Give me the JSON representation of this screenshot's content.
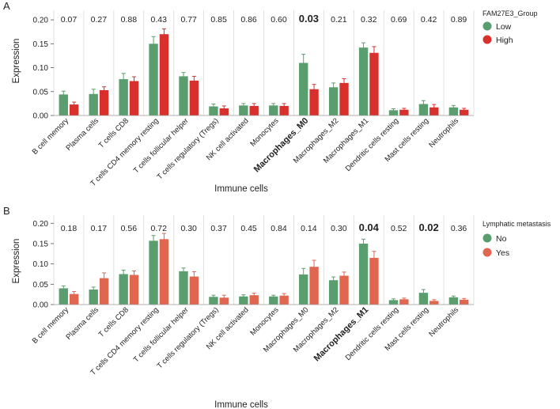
{
  "chart_data": [
    {
      "panel_label": "A",
      "type": "bar",
      "ylabel": "Expression",
      "xlabel": "Immune cells",
      "ylim": [
        0,
        0.22
      ],
      "yticks": [
        "0.00",
        "0.05",
        "0.10",
        "0.15",
        "0.20"
      ],
      "tick_values": [
        0,
        0.05,
        0.1,
        0.15,
        0.2
      ],
      "categories": [
        "B cell memory",
        "Plasma cells",
        "T cells CD8",
        "T cells CD4 memory resting",
        "T cells follicular helper",
        "T cells regulatory (Tregs)",
        "NK cell activated",
        "Monocytes",
        "Macrophages_M0",
        "Macrophages_M2",
        "Macrophages_M1",
        "Dendritic cells resting",
        "Mast cells resting",
        "Neutrophils"
      ],
      "highlight_category": "Macrophages_M0",
      "pvalues": [
        "0.07",
        "0.27",
        "0.88",
        "0.43",
        "0.77",
        "0.85",
        "0.86",
        "0.60",
        "0.03",
        "0.21",
        "0.32",
        "0.69",
        "0.42",
        "0.89"
      ],
      "significant_pvalue": "0.03",
      "legend_title": "FAM27E3_Group",
      "series": [
        {
          "name": "Low",
          "color": "#5a9e6f",
          "values": [
            0.044,
            0.045,
            0.076,
            0.15,
            0.082,
            0.019,
            0.021,
            0.021,
            0.11,
            0.059,
            0.142,
            0.011,
            0.024,
            0.017
          ],
          "errors": [
            0.007,
            0.01,
            0.012,
            0.015,
            0.008,
            0.005,
            0.004,
            0.004,
            0.018,
            0.009,
            0.01,
            0.003,
            0.007,
            0.004
          ]
        },
        {
          "name": "High",
          "color": "#d8312d",
          "values": [
            0.023,
            0.053,
            0.072,
            0.17,
            0.073,
            0.015,
            0.02,
            0.02,
            0.055,
            0.068,
            0.131,
            0.012,
            0.017,
            0.012
          ],
          "errors": [
            0.005,
            0.007,
            0.009,
            0.011,
            0.009,
            0.005,
            0.005,
            0.005,
            0.01,
            0.009,
            0.013,
            0.003,
            0.006,
            0.003
          ]
        }
      ]
    },
    {
      "panel_label": "B",
      "type": "bar",
      "ylabel": "Expression",
      "xlabel": "Immune cells",
      "ylim": [
        0,
        0.22
      ],
      "yticks": [
        "0.00",
        "0.05",
        "0.10",
        "0.15",
        "0.20"
      ],
      "tick_values": [
        0,
        0.05,
        0.1,
        0.15,
        0.2
      ],
      "categories": [
        "B cell memory",
        "Plasma cells",
        "T cells CD8",
        "T cells CD4 memory resting",
        "T cells follicular helper",
        "T cells regulatory (Tregs)",
        "NK cell activated",
        "Monocytes",
        "Macrophages_M0",
        "Macrophages_M2",
        "Macrophages_M1",
        "Dendritic cells resting",
        "Mast cells resting",
        "Neutrophils"
      ],
      "highlight_category": "Macrophages_M1",
      "pvalues": [
        "0.18",
        "0.17",
        "0.56",
        "0.72",
        "0.30",
        "0.37",
        "0.45",
        "0.84",
        "0.14",
        "0.30",
        "0.04",
        "0.52",
        "0.02",
        "0.36"
      ],
      "significant_pvalue": "0.04|0.02",
      "legend_title": "Lymphatic metastasis",
      "series": [
        {
          "name": "No",
          "color": "#5a9e6f",
          "values": [
            0.04,
            0.037,
            0.075,
            0.157,
            0.082,
            0.019,
            0.02,
            0.02,
            0.074,
            0.06,
            0.15,
            0.011,
            0.029,
            0.018
          ],
          "errors": [
            0.006,
            0.006,
            0.01,
            0.013,
            0.008,
            0.004,
            0.004,
            0.003,
            0.015,
            0.008,
            0.011,
            0.003,
            0.008,
            0.003
          ]
        },
        {
          "name": "Yes",
          "color": "#e06650",
          "values": [
            0.026,
            0.065,
            0.073,
            0.161,
            0.069,
            0.017,
            0.023,
            0.022,
            0.093,
            0.071,
            0.115,
            0.013,
            0.009,
            0.012
          ],
          "errors": [
            0.006,
            0.013,
            0.01,
            0.014,
            0.012,
            0.006,
            0.005,
            0.005,
            0.016,
            0.009,
            0.016,
            0.003,
            0.003,
            0.003
          ]
        }
      ]
    }
  ]
}
